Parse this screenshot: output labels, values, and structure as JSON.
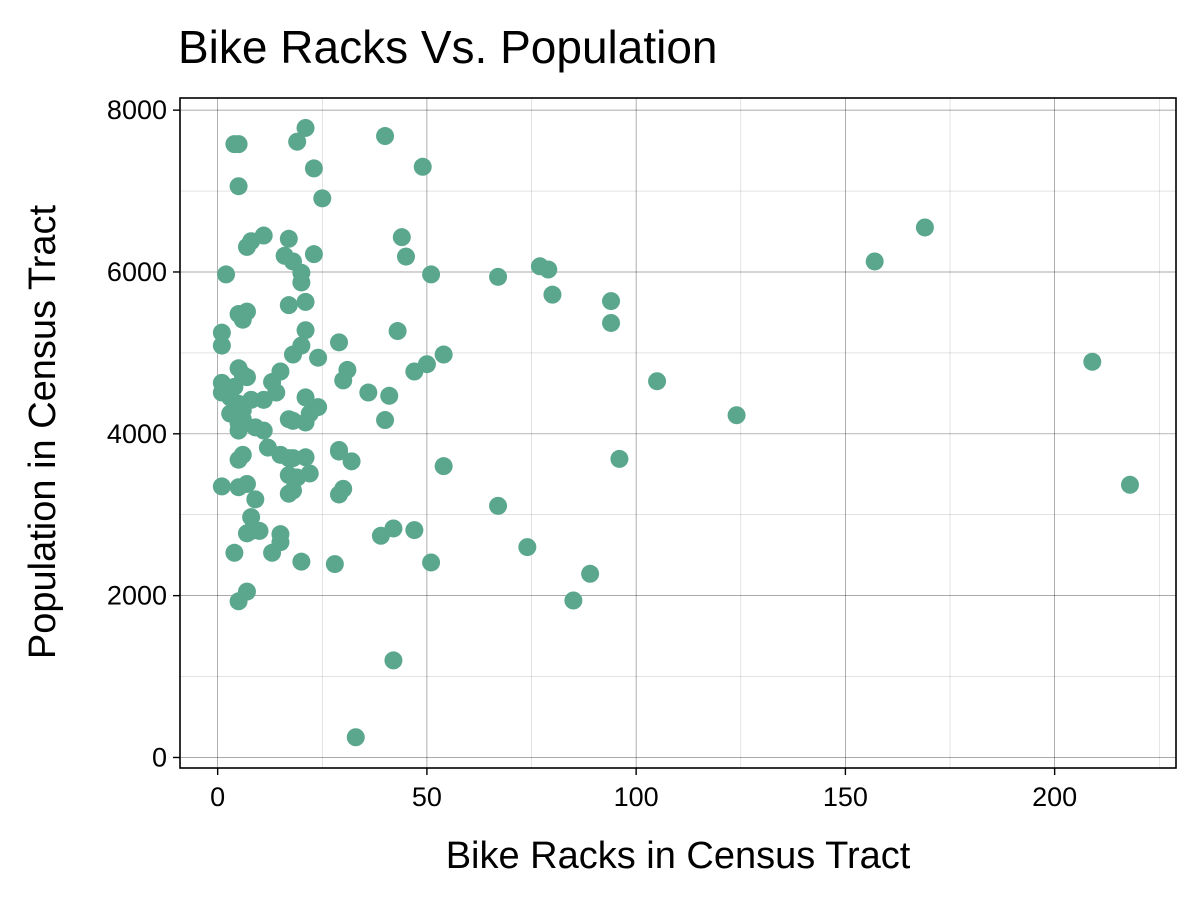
{
  "chart_data": {
    "type": "scatter",
    "title": "Bike Racks Vs. Population",
    "xlabel": "Bike Racks in Census Tract",
    "ylabel": "Population in Census Tract",
    "xlim": [
      -9,
      229
    ],
    "ylim": [
      -130,
      8150
    ],
    "xticks": [
      0,
      50,
      100,
      150,
      200
    ],
    "xtick_labels": [
      "0",
      "50",
      "100",
      "150",
      "200"
    ],
    "yticks": [
      0,
      2000,
      4000,
      6000,
      8000
    ],
    "ytick_labels": [
      "0",
      "2000",
      "4000",
      "6000",
      "8000"
    ],
    "grid": true,
    "marker_color": "#5aa78e",
    "points": [
      {
        "x": 4,
        "y": 7580
      },
      {
        "x": 5,
        "y": 7580
      },
      {
        "x": 5,
        "y": 7060
      },
      {
        "x": 19,
        "y": 7610
      },
      {
        "x": 21,
        "y": 7780
      },
      {
        "x": 23,
        "y": 7280
      },
      {
        "x": 25,
        "y": 6910
      },
      {
        "x": 40,
        "y": 7680
      },
      {
        "x": 49,
        "y": 7300
      },
      {
        "x": 2,
        "y": 5970
      },
      {
        "x": 7,
        "y": 6310
      },
      {
        "x": 8,
        "y": 6380
      },
      {
        "x": 11,
        "y": 6450
      },
      {
        "x": 16,
        "y": 6200
      },
      {
        "x": 17,
        "y": 6410
      },
      {
        "x": 18,
        "y": 6130
      },
      {
        "x": 20,
        "y": 5990
      },
      {
        "x": 20,
        "y": 5870
      },
      {
        "x": 23,
        "y": 6220
      },
      {
        "x": 44,
        "y": 6430
      },
      {
        "x": 45,
        "y": 6190
      },
      {
        "x": 51,
        "y": 5970
      },
      {
        "x": 67,
        "y": 5940
      },
      {
        "x": 77,
        "y": 6070
      },
      {
        "x": 79,
        "y": 6030
      },
      {
        "x": 80,
        "y": 5720
      },
      {
        "x": 94,
        "y": 5640
      },
      {
        "x": 94,
        "y": 5370
      },
      {
        "x": 157,
        "y": 6130
      },
      {
        "x": 169,
        "y": 6550
      },
      {
        "x": 1,
        "y": 5250
      },
      {
        "x": 1,
        "y": 5090
      },
      {
        "x": 5,
        "y": 5480
      },
      {
        "x": 6,
        "y": 5410
      },
      {
        "x": 7,
        "y": 5510
      },
      {
        "x": 17,
        "y": 5590
      },
      {
        "x": 21,
        "y": 5630
      },
      {
        "x": 21,
        "y": 5280
      },
      {
        "x": 20,
        "y": 5090
      },
      {
        "x": 18,
        "y": 4980
      },
      {
        "x": 24,
        "y": 4940
      },
      {
        "x": 29,
        "y": 5130
      },
      {
        "x": 43,
        "y": 5270
      },
      {
        "x": 50,
        "y": 4860
      },
      {
        "x": 54,
        "y": 4980
      },
      {
        "x": 47,
        "y": 4770
      },
      {
        "x": 209,
        "y": 4890
      },
      {
        "x": 1,
        "y": 4630
      },
      {
        "x": 1,
        "y": 4510
      },
      {
        "x": 3,
        "y": 4450
      },
      {
        "x": 3,
        "y": 4250
      },
      {
        "x": 4,
        "y": 4580
      },
      {
        "x": 5,
        "y": 4810
      },
      {
        "x": 6,
        "y": 4730
      },
      {
        "x": 7,
        "y": 4700
      },
      {
        "x": 5,
        "y": 4370
      },
      {
        "x": 6,
        "y": 4290
      },
      {
        "x": 6,
        "y": 4180
      },
      {
        "x": 5,
        "y": 4130
      },
      {
        "x": 5,
        "y": 4040
      },
      {
        "x": 8,
        "y": 4420
      },
      {
        "x": 9,
        "y": 4080
      },
      {
        "x": 11,
        "y": 4420
      },
      {
        "x": 13,
        "y": 4640
      },
      {
        "x": 15,
        "y": 4770
      },
      {
        "x": 14,
        "y": 4510
      },
      {
        "x": 17,
        "y": 4180
      },
      {
        "x": 18,
        "y": 4160
      },
      {
        "x": 21,
        "y": 4450
      },
      {
        "x": 21,
        "y": 4140
      },
      {
        "x": 22,
        "y": 4250
      },
      {
        "x": 24,
        "y": 4330
      },
      {
        "x": 30,
        "y": 4660
      },
      {
        "x": 31,
        "y": 4790
      },
      {
        "x": 36,
        "y": 4510
      },
      {
        "x": 41,
        "y": 4470
      },
      {
        "x": 40,
        "y": 4170
      },
      {
        "x": 105,
        "y": 4650
      },
      {
        "x": 124,
        "y": 4230
      },
      {
        "x": 11,
        "y": 4040
      },
      {
        "x": 12,
        "y": 3830
      },
      {
        "x": 15,
        "y": 3740
      },
      {
        "x": 17,
        "y": 3700
      },
      {
        "x": 18,
        "y": 3700
      },
      {
        "x": 5,
        "y": 3680
      },
      {
        "x": 6,
        "y": 3740
      },
      {
        "x": 17,
        "y": 3490
      },
      {
        "x": 19,
        "y": 3460
      },
      {
        "x": 21,
        "y": 3710
      },
      {
        "x": 22,
        "y": 3510
      },
      {
        "x": 29,
        "y": 3780
      },
      {
        "x": 29,
        "y": 3800
      },
      {
        "x": 32,
        "y": 3660
      },
      {
        "x": 54,
        "y": 3600
      },
      {
        "x": 96,
        "y": 3690
      },
      {
        "x": 1,
        "y": 3350
      },
      {
        "x": 5,
        "y": 3340
      },
      {
        "x": 7,
        "y": 3380
      },
      {
        "x": 9,
        "y": 3190
      },
      {
        "x": 17,
        "y": 3260
      },
      {
        "x": 18,
        "y": 3300
      },
      {
        "x": 29,
        "y": 3250
      },
      {
        "x": 30,
        "y": 3320
      },
      {
        "x": 67,
        "y": 3110
      },
      {
        "x": 218,
        "y": 3370
      },
      {
        "x": 8,
        "y": 2970
      },
      {
        "x": 7,
        "y": 2770
      },
      {
        "x": 8,
        "y": 2800
      },
      {
        "x": 10,
        "y": 2800
      },
      {
        "x": 15,
        "y": 2760
      },
      {
        "x": 15,
        "y": 2660
      },
      {
        "x": 13,
        "y": 2530
      },
      {
        "x": 4,
        "y": 2530
      },
      {
        "x": 39,
        "y": 2740
      },
      {
        "x": 42,
        "y": 2830
      },
      {
        "x": 47,
        "y": 2810
      },
      {
        "x": 74,
        "y": 2600
      },
      {
        "x": 20,
        "y": 2420
      },
      {
        "x": 28,
        "y": 2390
      },
      {
        "x": 51,
        "y": 2410
      },
      {
        "x": 89,
        "y": 2270
      },
      {
        "x": 7,
        "y": 2050
      },
      {
        "x": 5,
        "y": 1930
      },
      {
        "x": 85,
        "y": 1940
      },
      {
        "x": 42,
        "y": 1200
      },
      {
        "x": 33,
        "y": 250
      }
    ]
  }
}
